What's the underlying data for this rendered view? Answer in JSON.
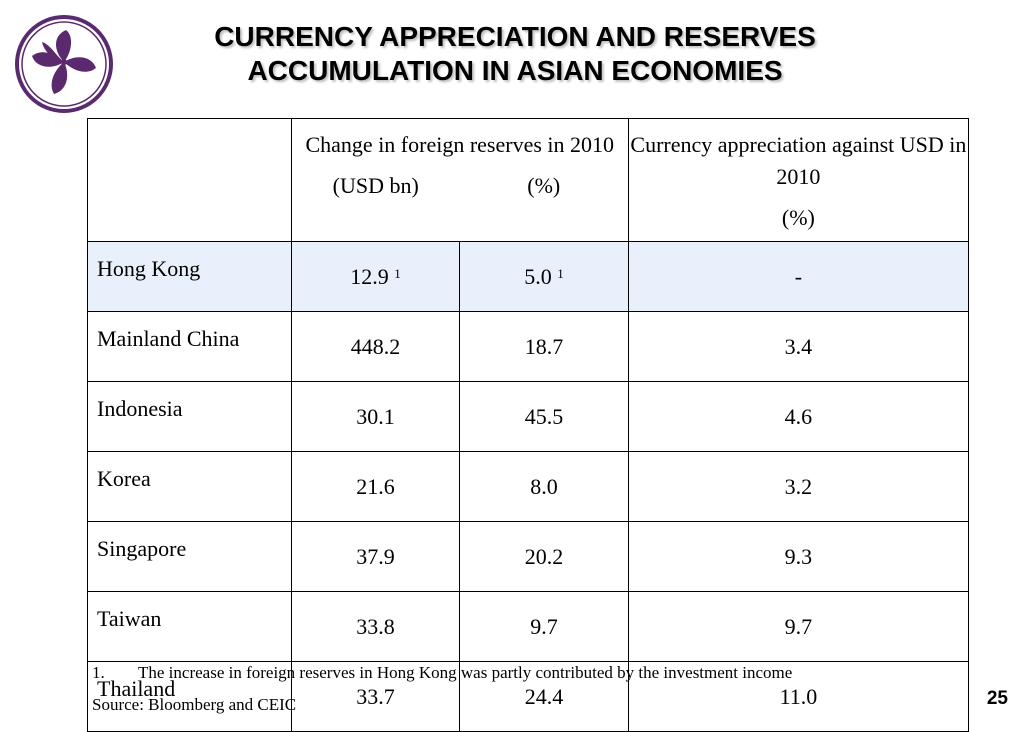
{
  "title": {
    "line1": "CURRENCY APPRECIATION AND RESERVES",
    "line2": "ACCUMULATION IN ASIAN ECONOMIES"
  },
  "colors": {
    "logo": "#5b2a6e",
    "highlight_row": "#e8f1fb"
  },
  "logo": {
    "icon": "bauhinia-flower-icon"
  },
  "table": {
    "header": {
      "reserves_label": "Change in foreign reserves in 2010",
      "reserves_unit_usd": "(USD bn)",
      "reserves_unit_pct": "(%)",
      "appreciation_label": "Currency appreciation against USD in 2010",
      "appreciation_unit": "(%)"
    },
    "rows": [
      {
        "name": "Hong Kong",
        "reserves_usd": "12.9",
        "reserves_usd_note": "1",
        "reserves_pct": "5.0",
        "reserves_pct_note": "1",
        "appreciation": "-"
      },
      {
        "name": "Mainland China",
        "reserves_usd": "448.2",
        "reserves_pct": "18.7",
        "appreciation": "3.4"
      },
      {
        "name": "Indonesia",
        "reserves_usd": "30.1",
        "reserves_pct": "45.5",
        "appreciation": "4.6"
      },
      {
        "name": "Korea",
        "reserves_usd": "21.6",
        "reserves_pct": "8.0",
        "appreciation": "3.2"
      },
      {
        "name": "Singapore",
        "reserves_usd": "37.9",
        "reserves_pct": "20.2",
        "appreciation": "9.3"
      },
      {
        "name": "Taiwan",
        "reserves_usd": "33.8",
        "reserves_pct": "9.7",
        "appreciation": "9.7"
      },
      {
        "name": "Thailand",
        "reserves_usd": "33.7",
        "reserves_pct": "24.4",
        "appreciation": "11.0"
      }
    ]
  },
  "footnote": {
    "number": "1.",
    "text": "The increase in foreign reserves in Hong Kong was partly contributed by the investment income"
  },
  "source": "Source: Bloomberg and CEIC",
  "page_number": "25"
}
